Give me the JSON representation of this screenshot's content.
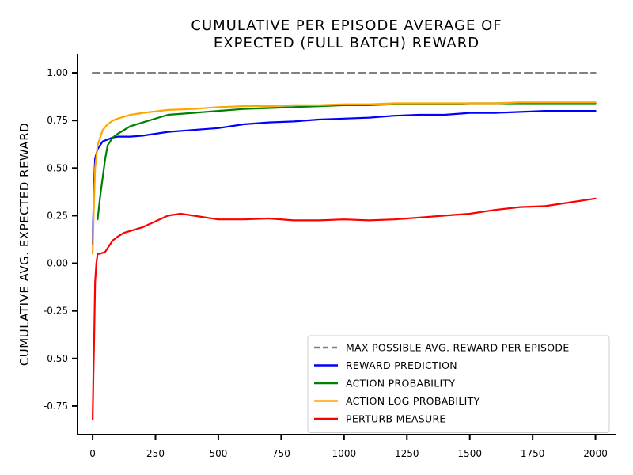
{
  "chart_data": {
    "type": "line",
    "title_lines": [
      "CUMULATIVE PER EPISODE AVERAGE OF",
      "EXPECTED (FULL BATCH) REWARD"
    ],
    "xlabel": "",
    "ylabel": "CUMULATIVE AVG. EXPECTED REWARD",
    "xlim": [
      -60,
      2080
    ],
    "ylim": [
      -0.9,
      1.1
    ],
    "xticks": [
      0,
      250,
      500,
      750,
      1000,
      1250,
      1500,
      1750,
      2000
    ],
    "xtick_labels": [
      "0",
      "250",
      "500",
      "750",
      "1000",
      "1250",
      "1500",
      "1750",
      "2000"
    ],
    "yticks": [
      -0.75,
      -0.5,
      -0.25,
      0.0,
      0.25,
      0.5,
      0.75,
      1.0
    ],
    "ytick_labels": [
      "-0.75",
      "-0.50",
      "-0.25",
      "0.00",
      "0.25",
      "0.50",
      "0.75",
      "1.00"
    ],
    "grid": false,
    "legend_position": "lower-right",
    "series": [
      {
        "name": "MAX POSSIBLE AVG. REWARD PER EPISODE",
        "color": "#808080",
        "dashed": true,
        "x": [
          0,
          2000
        ],
        "y": [
          1.0,
          1.0
        ]
      },
      {
        "name": "REWARD PREDICTION",
        "color": "#0000ff",
        "dashed": false,
        "x": [
          0,
          5,
          10,
          20,
          40,
          60,
          80,
          100,
          150,
          200,
          300,
          400,
          500,
          600,
          700,
          800,
          900,
          1000,
          1100,
          1200,
          1300,
          1400,
          1500,
          1600,
          1700,
          1800,
          1900,
          2000
        ],
        "y": [
          0.1,
          0.4,
          0.55,
          0.6,
          0.64,
          0.65,
          0.66,
          0.665,
          0.665,
          0.67,
          0.69,
          0.7,
          0.71,
          0.73,
          0.74,
          0.745,
          0.755,
          0.76,
          0.765,
          0.775,
          0.78,
          0.78,
          0.79,
          0.79,
          0.795,
          0.8,
          0.8,
          0.8
        ]
      },
      {
        "name": "ACTION PROBABILITY",
        "color": "#008000",
        "dashed": false,
        "x": [
          20,
          30,
          40,
          50,
          60,
          80,
          100,
          150,
          200,
          300,
          400,
          500,
          600,
          700,
          800,
          900,
          1000,
          1100,
          1200,
          1300,
          1400,
          1500,
          1600,
          1700,
          1800,
          1900,
          2000
        ],
        "y": [
          0.23,
          0.35,
          0.45,
          0.55,
          0.62,
          0.66,
          0.68,
          0.72,
          0.74,
          0.78,
          0.79,
          0.8,
          0.81,
          0.815,
          0.82,
          0.825,
          0.83,
          0.83,
          0.835,
          0.835,
          0.835,
          0.84,
          0.84,
          0.84,
          0.84,
          0.84,
          0.84
        ]
      },
      {
        "name": "ACTION LOG PROBABILITY",
        "color": "#ffa500",
        "dashed": false,
        "x": [
          0,
          5,
          10,
          20,
          40,
          60,
          80,
          100,
          150,
          200,
          300,
          400,
          500,
          600,
          700,
          800,
          900,
          1000,
          1100,
          1200,
          1300,
          1400,
          1500,
          1600,
          1700,
          1800,
          1900,
          2000
        ],
        "y": [
          0.05,
          0.3,
          0.5,
          0.62,
          0.7,
          0.73,
          0.75,
          0.76,
          0.78,
          0.79,
          0.805,
          0.81,
          0.82,
          0.825,
          0.825,
          0.83,
          0.83,
          0.835,
          0.835,
          0.84,
          0.84,
          0.84,
          0.84,
          0.84,
          0.845,
          0.845,
          0.845,
          0.845
        ]
      },
      {
        "name": "PERTURB MEASURE",
        "color": "#ff0000",
        "dashed": false,
        "x": [
          0,
          3,
          6,
          10,
          15,
          20,
          30,
          50,
          60,
          70,
          80,
          100,
          125,
          150,
          200,
          250,
          300,
          350,
          400,
          500,
          600,
          700,
          800,
          900,
          1000,
          1100,
          1200,
          1300,
          1400,
          1500,
          1600,
          1700,
          1800,
          1900,
          2000
        ],
        "y": [
          -0.82,
          -0.6,
          -0.4,
          -0.1,
          0.0,
          0.05,
          0.05,
          0.06,
          0.08,
          0.1,
          0.12,
          0.14,
          0.16,
          0.17,
          0.19,
          0.22,
          0.25,
          0.26,
          0.25,
          0.23,
          0.23,
          0.235,
          0.225,
          0.225,
          0.23,
          0.225,
          0.23,
          0.24,
          0.25,
          0.26,
          0.28,
          0.295,
          0.3,
          0.32,
          0.34
        ]
      }
    ]
  }
}
